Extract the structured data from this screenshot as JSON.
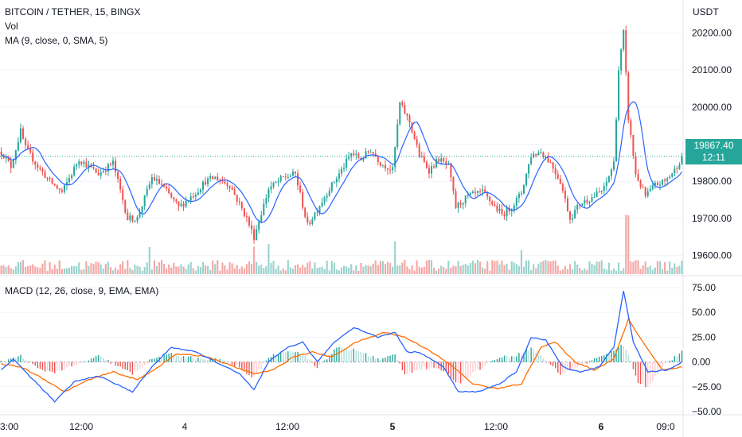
{
  "chart_data": [
    {
      "type": "candlestick",
      "symbol_title": "BITCOIN / TETHER, 15, BINGX",
      "indicators": [
        "Vol",
        "MA (9, close, 0, SMA, 5)"
      ],
      "currency": "USDT",
      "price_ticks": [
        "20200.00",
        "20100.00",
        "20000.00",
        "19900.00",
        "19800.00",
        "19700.00",
        "19600.00"
      ],
      "ylim": [
        19550,
        20250
      ],
      "last_price": "19867.40",
      "countdown": "12:11",
      "colors": {
        "up": "#26a69a",
        "down": "#ef5350",
        "ma": "#2962ff"
      },
      "anchors": [
        [
          0,
          19880
        ],
        [
          4,
          19840
        ],
        [
          8,
          19935
        ],
        [
          10,
          19890
        ],
        [
          15,
          19840
        ],
        [
          20,
          19800
        ],
        [
          25,
          19770
        ],
        [
          32,
          19860
        ],
        [
          40,
          19820
        ],
        [
          46,
          19850
        ],
        [
          52,
          19700
        ],
        [
          56,
          19700
        ],
        [
          62,
          19810
        ],
        [
          66,
          19790
        ],
        [
          73,
          19730
        ],
        [
          80,
          19770
        ],
        [
          84,
          19800
        ],
        [
          88,
          19810
        ],
        [
          94,
          19790
        ],
        [
          101,
          19700
        ],
        [
          104,
          19650
        ],
        [
          110,
          19780
        ],
        [
          116,
          19810
        ],
        [
          121,
          19820
        ],
        [
          126,
          19680
        ],
        [
          134,
          19770
        ],
        [
          140,
          19830
        ],
        [
          144,
          19875
        ],
        [
          148,
          19860
        ],
        [
          152,
          19885
        ],
        [
          156,
          19850
        ],
        [
          161,
          19830
        ],
        [
          164,
          20010
        ],
        [
          168,
          19960
        ],
        [
          172,
          19870
        ],
        [
          176,
          19830
        ],
        [
          180,
          19860
        ],
        [
          184,
          19840
        ],
        [
          187,
          19730
        ],
        [
          192,
          19760
        ],
        [
          198,
          19770
        ],
        [
          202,
          19740
        ],
        [
          206,
          19710
        ],
        [
          210,
          19730
        ],
        [
          214,
          19770
        ],
        [
          218,
          19870
        ],
        [
          222,
          19880
        ],
        [
          226,
          19850
        ],
        [
          230,
          19800
        ],
        [
          234,
          19700
        ],
        [
          238,
          19740
        ],
        [
          244,
          19760
        ],
        [
          248,
          19780
        ],
        [
          252,
          19850
        ],
        [
          254,
          20100
        ],
        [
          256,
          20200
        ],
        [
          258,
          19970
        ],
        [
          261,
          19820
        ],
        [
          265,
          19760
        ],
        [
          269,
          19790
        ],
        [
          273,
          19800
        ],
        [
          277,
          19830
        ],
        [
          280,
          19865
        ]
      ]
    },
    {
      "type": "line",
      "title": "MACD (12, 26, close, 9, EMA, EMA)",
      "series": [
        {
          "name": "MACD",
          "color": "#2962ff"
        },
        {
          "name": "Signal",
          "color": "#ff6d00"
        },
        {
          "name": "Histogram",
          "color": "#26a69a"
        }
      ],
      "ticks": [
        "75.00",
        "50.00",
        "25.00",
        "0.00",
        "−25.00",
        "−50.00"
      ],
      "ylim": [
        -50,
        80
      ],
      "macd_anchors": [
        [
          0,
          -8
        ],
        [
          5,
          3
        ],
        [
          10,
          -10
        ],
        [
          14,
          -20
        ],
        [
          22,
          -40
        ],
        [
          30,
          -20
        ],
        [
          40,
          -14
        ],
        [
          54,
          -30
        ],
        [
          62,
          -5
        ],
        [
          70,
          15
        ],
        [
          80,
          10
        ],
        [
          90,
          -2
        ],
        [
          98,
          -12
        ],
        [
          104,
          -28
        ],
        [
          110,
          0
        ],
        [
          118,
          15
        ],
        [
          124,
          20
        ],
        [
          130,
          0
        ],
        [
          137,
          20
        ],
        [
          145,
          35
        ],
        [
          155,
          25
        ],
        [
          162,
          30
        ],
        [
          167,
          10
        ],
        [
          172,
          10
        ],
        [
          182,
          -5
        ],
        [
          188,
          -30
        ],
        [
          196,
          -30
        ],
        [
          205,
          -22
        ],
        [
          212,
          -10
        ],
        [
          218,
          25
        ],
        [
          224,
          22
        ],
        [
          231,
          -5
        ],
        [
          238,
          -10
        ],
        [
          246,
          -5
        ],
        [
          252,
          15
        ],
        [
          256,
          72
        ],
        [
          260,
          20
        ],
        [
          266,
          -10
        ],
        [
          274,
          -8
        ],
        [
          280,
          0
        ]
      ],
      "signal_anchors": [
        [
          0,
          -2
        ],
        [
          8,
          -5
        ],
        [
          16,
          -15
        ],
        [
          26,
          -30
        ],
        [
          36,
          -18
        ],
        [
          46,
          -10
        ],
        [
          56,
          -18
        ],
        [
          64,
          -6
        ],
        [
          72,
          8
        ],
        [
          84,
          6
        ],
        [
          96,
          -5
        ],
        [
          104,
          -12
        ],
        [
          112,
          -8
        ],
        [
          120,
          5
        ],
        [
          128,
          10
        ],
        [
          136,
          5
        ],
        [
          146,
          20
        ],
        [
          158,
          30
        ],
        [
          166,
          25
        ],
        [
          176,
          12
        ],
        [
          186,
          -5
        ],
        [
          194,
          -22
        ],
        [
          204,
          -27
        ],
        [
          214,
          -22
        ],
        [
          222,
          15
        ],
        [
          228,
          20
        ],
        [
          236,
          0
        ],
        [
          244,
          -8
        ],
        [
          252,
          3
        ],
        [
          258,
          43
        ],
        [
          264,
          20
        ],
        [
          272,
          -8
        ],
        [
          280,
          -5
        ]
      ],
      "hist_anchors": [
        [
          0,
          0
        ],
        [
          8,
          6
        ],
        [
          16,
          -8
        ],
        [
          22,
          -10
        ],
        [
          30,
          -4
        ],
        [
          40,
          6
        ],
        [
          54,
          -12
        ],
        [
          62,
          3
        ],
        [
          70,
          8
        ],
        [
          82,
          3
        ],
        [
          92,
          2
        ],
        [
          98,
          -6
        ],
        [
          104,
          -16
        ],
        [
          110,
          5
        ],
        [
          118,
          12
        ],
        [
          124,
          8
        ],
        [
          130,
          -6
        ],
        [
          138,
          14
        ],
        [
          146,
          12
        ],
        [
          156,
          2
        ],
        [
          162,
          8
        ],
        [
          166,
          -12
        ],
        [
          174,
          -6
        ],
        [
          182,
          -8
        ],
        [
          188,
          -22
        ],
        [
          196,
          -8
        ],
        [
          204,
          4
        ],
        [
          212,
          7
        ],
        [
          218,
          14
        ],
        [
          224,
          2
        ],
        [
          230,
          -12
        ],
        [
          238,
          -4
        ],
        [
          244,
          3
        ],
        [
          250,
          8
        ],
        [
          255,
          18
        ],
        [
          258,
          8
        ],
        [
          262,
          -20
        ],
        [
          266,
          -26
        ],
        [
          272,
          -4
        ],
        [
          280,
          10
        ]
      ]
    }
  ],
  "time_axis": {
    "labels": [
      "3:00",
      "12:00",
      "4",
      "12:00",
      "5",
      "12:00",
      "6",
      "09:0"
    ],
    "bold_labels": [
      "5",
      "6"
    ]
  },
  "header": {
    "title": "BITCOIN / TETHER, 15, BINGX",
    "vol_label": "Vol",
    "ma_label": "MA (9, close, 0, SMA, 5)",
    "macd_label": "MACD (12, 26, close, 9, EMA, EMA)",
    "currency": "USDT"
  }
}
